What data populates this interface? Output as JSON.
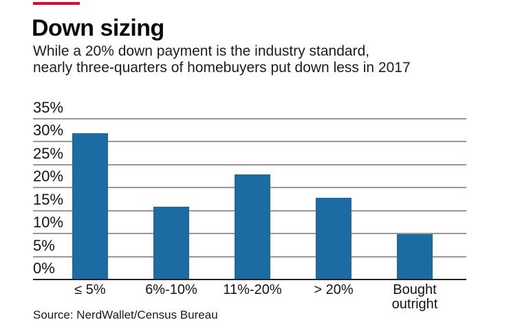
{
  "header": {
    "title": "Down sizing",
    "subtitle_line1": "While a 20% down payment is the industry standard,",
    "subtitle_line2": "nearly three-quarters of homebuyers put down less in 2017"
  },
  "chart_data": {
    "type": "bar",
    "categories": [
      "≤ 5%",
      "6%-10%",
      "11%-20%",
      "> 20%",
      "Bought outright"
    ],
    "values": [
      32,
      16,
      23,
      18,
      10
    ],
    "title": "Down sizing",
    "xlabel": "",
    "ylabel": "",
    "ylim": [
      0,
      35
    ],
    "ytick_values": [
      0,
      5,
      10,
      15,
      20,
      25,
      30,
      35
    ],
    "ytick_labels": [
      "0%",
      "5%",
      "10%",
      "15%",
      "20%",
      "25%",
      "30%",
      "35%"
    ],
    "grid": true,
    "legend": false,
    "bar_color": "#1d6ba3"
  },
  "footer": {
    "source": "Source: NerdWallet/Census Bureau"
  },
  "colors": {
    "accent_red": "#ea0029",
    "bar_blue": "#1d6ba3",
    "gridline_gray": "#989898",
    "baseline_dark": "#222222"
  }
}
